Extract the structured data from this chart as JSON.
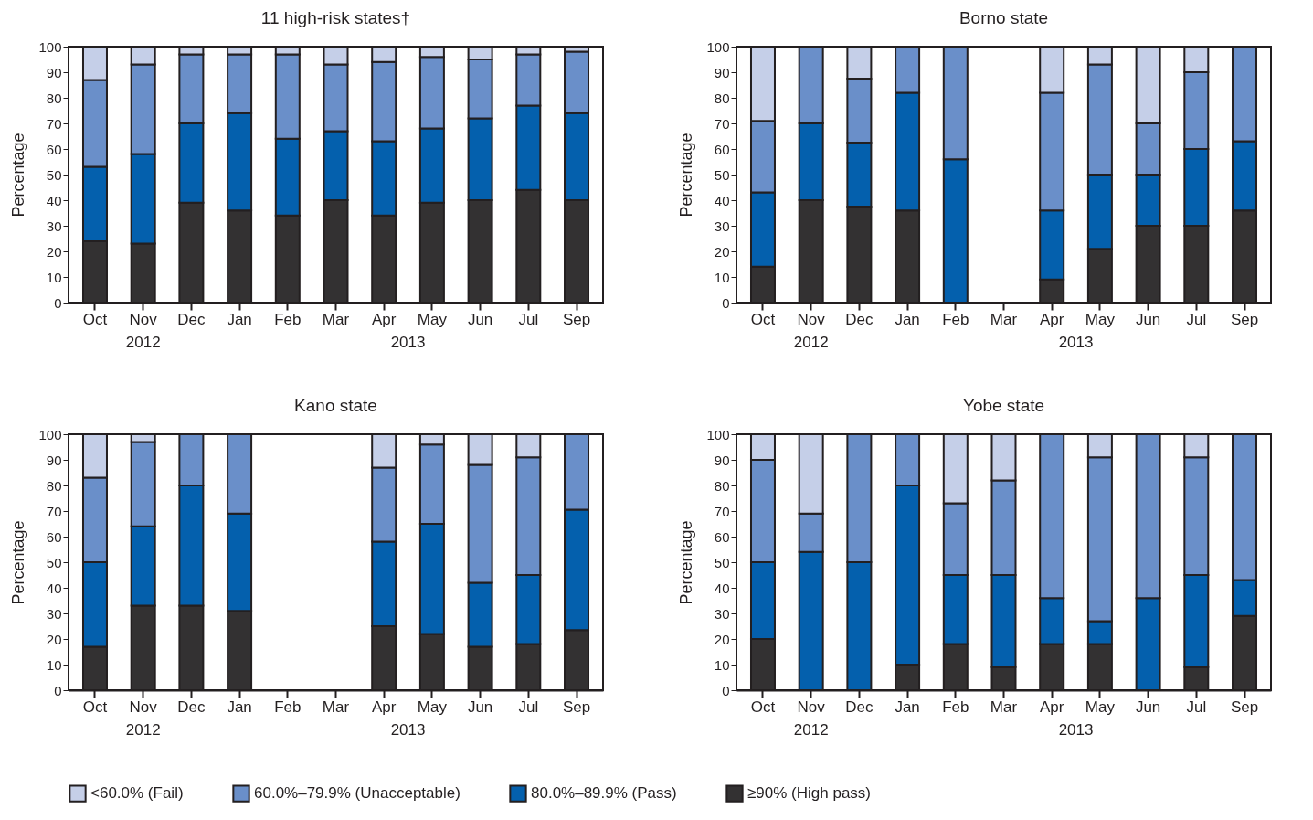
{
  "chart_data": [
    {
      "type": "bar",
      "stacked": true,
      "title": "11 high-risk states†",
      "ylabel": "Percentage",
      "categories": [
        "Oct",
        "Nov",
        "Dec",
        "Jan",
        "Feb",
        "Mar",
        "Apr",
        "May",
        "Jun",
        "Jul",
        "Sep"
      ],
      "ylim": [
        0,
        100
      ],
      "yticks": [
        0,
        10,
        20,
        30,
        40,
        50,
        60,
        70,
        80,
        90,
        100
      ],
      "grid": false,
      "legend": "bottom",
      "annotations": [
        "2012",
        "2013"
      ],
      "series": [
        {
          "name": "≥90% (High pass)",
          "color": "#333132",
          "values": [
            24,
            23,
            39,
            36,
            34,
            40,
            34,
            39,
            40,
            44,
            40
          ]
        },
        {
          "name": "80.0%–89.9% (Pass)",
          "color": "#0460ad",
          "values": [
            29,
            35,
            31,
            38,
            30,
            27,
            29,
            29,
            32,
            33,
            34
          ]
        },
        {
          "name": "60.0%–79.9% (Unacceptable)",
          "color": "#6a8fc9",
          "values": [
            34,
            35,
            27,
            23,
            33,
            26,
            31,
            28,
            23,
            20,
            24
          ]
        },
        {
          "name": "<60.0% (Fail)",
          "color": "#c5cfe8",
          "values": [
            13,
            7,
            3,
            3,
            3,
            7,
            6,
            4,
            5,
            3,
            2
          ]
        }
      ]
    },
    {
      "type": "bar",
      "stacked": true,
      "title": "Borno state",
      "ylabel": "Percentage",
      "categories": [
        "Oct",
        "Nov",
        "Dec",
        "Jan",
        "Feb",
        "Mar",
        "Apr",
        "May",
        "Jun",
        "Jul",
        "Sep"
      ],
      "ylim": [
        0,
        100
      ],
      "yticks": [
        0,
        10,
        20,
        30,
        40,
        50,
        60,
        70,
        80,
        90,
        100
      ],
      "grid": false,
      "legend": "bottom",
      "annotations": [
        "2012",
        "2013"
      ],
      "series": [
        {
          "name": "≥90% (High pass)",
          "color": "#333132",
          "values": [
            14,
            40,
            37.5,
            36,
            0,
            null,
            9,
            21,
            30,
            30,
            36
          ]
        },
        {
          "name": "80.0%–89.9% (Pass)",
          "color": "#0460ad",
          "values": [
            29,
            30,
            25,
            46,
            56,
            null,
            27,
            29,
            20,
            30,
            27
          ]
        },
        {
          "name": "60.0%–79.9% (Unacceptable)",
          "color": "#6a8fc9",
          "values": [
            28,
            30,
            25,
            18,
            44,
            null,
            46,
            43,
            20,
            30,
            37
          ]
        },
        {
          "name": "<60.0% (Fail)",
          "color": "#c5cfe8",
          "values": [
            29,
            0,
            12.5,
            0,
            0,
            null,
            18,
            7,
            30,
            10,
            0
          ]
        }
      ]
    },
    {
      "type": "bar",
      "stacked": true,
      "title": "Kano state",
      "ylabel": "Percentage",
      "categories": [
        "Oct",
        "Nov",
        "Dec",
        "Jan",
        "Feb",
        "Mar",
        "Apr",
        "May",
        "Jun",
        "Jul",
        "Sep"
      ],
      "ylim": [
        0,
        100
      ],
      "yticks": [
        0,
        10,
        20,
        30,
        40,
        50,
        60,
        70,
        80,
        90,
        100
      ],
      "grid": false,
      "legend": "bottom",
      "annotations": [
        "2012",
        "2013"
      ],
      "series": [
        {
          "name": "≥90% (High pass)",
          "color": "#333132",
          "values": [
            17,
            33,
            33,
            31,
            null,
            null,
            25,
            22,
            17,
            18,
            23.5
          ]
        },
        {
          "name": "80.0%–89.9% (Pass)",
          "color": "#0460ad",
          "values": [
            33,
            31,
            47,
            38,
            null,
            null,
            33,
            43,
            25,
            27,
            47
          ]
        },
        {
          "name": "60.0%–79.9% (Unacceptable)",
          "color": "#6a8fc9",
          "values": [
            33,
            33,
            20,
            31,
            null,
            null,
            29,
            31,
            46,
            46,
            29.5
          ]
        },
        {
          "name": "<60.0% (Fail)",
          "color": "#c5cfe8",
          "values": [
            17,
            3,
            0,
            0,
            null,
            null,
            13,
            4,
            12,
            9,
            0
          ]
        }
      ]
    },
    {
      "type": "bar",
      "stacked": true,
      "title": "Yobe state",
      "ylabel": "Percentage",
      "categories": [
        "Oct",
        "Nov",
        "Dec",
        "Jan",
        "Feb",
        "Mar",
        "Apr",
        "May",
        "Jun",
        "Jul",
        "Sep"
      ],
      "ylim": [
        0,
        100
      ],
      "yticks": [
        0,
        10,
        20,
        30,
        40,
        50,
        60,
        70,
        80,
        90,
        100
      ],
      "grid": false,
      "legend": "bottom",
      "annotations": [
        "2012",
        "2013"
      ],
      "series": [
        {
          "name": "≥90% (High pass)",
          "color": "#333132",
          "values": [
            20,
            0,
            0,
            10,
            18,
            9,
            18,
            18,
            0,
            9,
            29
          ]
        },
        {
          "name": "80.0%–89.9% (Pass)",
          "color": "#0460ad",
          "values": [
            30,
            54,
            50,
            70,
            27,
            36,
            18,
            9,
            36,
            36,
            14
          ]
        },
        {
          "name": "60.0%–79.9% (Unacceptable)",
          "color": "#6a8fc9",
          "values": [
            40,
            15,
            50,
            20,
            28,
            37,
            64,
            64,
            64,
            46,
            57
          ]
        },
        {
          "name": "<60.0% (Fail)",
          "color": "#c5cfe8",
          "values": [
            10,
            31,
            0,
            0,
            27,
            18,
            0,
            9,
            0,
            9,
            0
          ]
        }
      ]
    }
  ]
}
